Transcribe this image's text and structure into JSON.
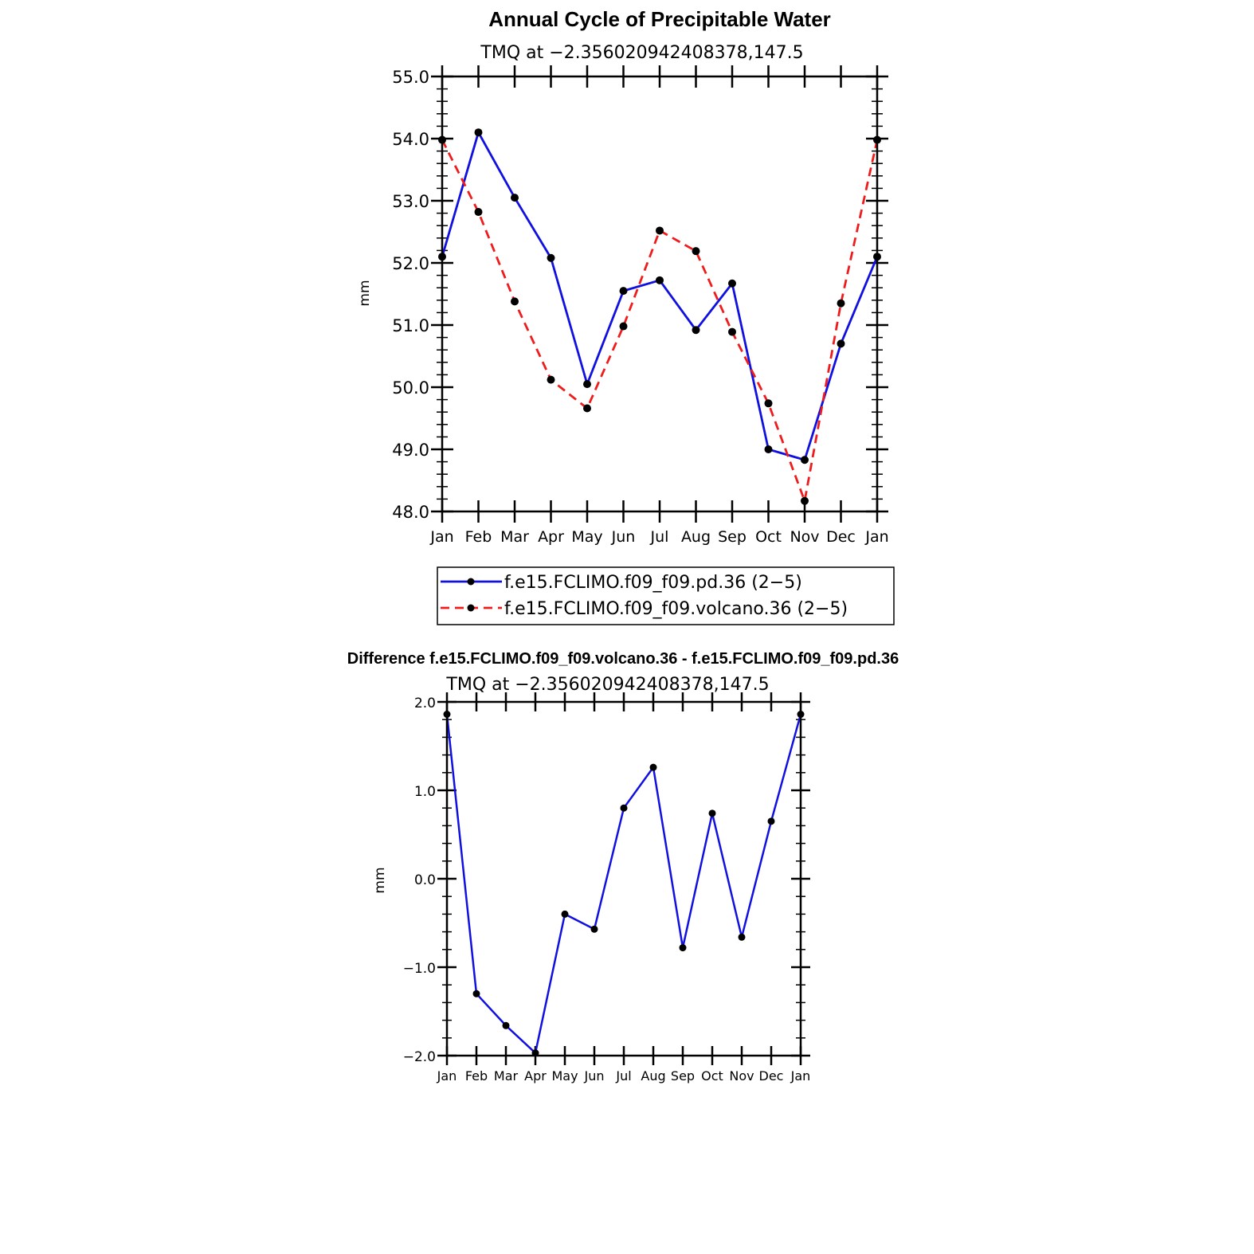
{
  "chart_data": [
    {
      "type": "line",
      "title": "Annual Cycle of Precipitable Water",
      "subtitle": "TMQ at −2.356020942408378,147.5",
      "ylabel": "mm",
      "xlabel": "",
      "ylim": [
        48.0,
        55.0
      ],
      "yticks": [
        "48.0",
        "49.0",
        "50.0",
        "51.0",
        "52.0",
        "53.0",
        "54.0",
        "55.0"
      ],
      "categories": [
        "Jan",
        "Feb",
        "Mar",
        "Apr",
        "May",
        "Jun",
        "Jul",
        "Aug",
        "Sep",
        "Oct",
        "Nov",
        "Dec",
        "Jan"
      ],
      "legend_position": "bottom",
      "series": [
        {
          "name": "f.e15.FCLIMO.f09_f09.pd.36 (2−5)",
          "color": "#1010e0",
          "style": "solid",
          "values": [
            52.1,
            54.1,
            53.05,
            52.08,
            50.05,
            51.55,
            51.72,
            50.92,
            51.67,
            49.0,
            48.83,
            50.7,
            52.1
          ]
        },
        {
          "name": "f.e15.FCLIMO.f09_f09.volcano.36 (2−5)",
          "color": "#ee1c1c",
          "style": "dashed",
          "values": [
            53.98,
            52.82,
            51.38,
            50.12,
            49.66,
            50.98,
            52.52,
            52.19,
            50.89,
            49.74,
            48.17,
            51.35,
            53.98
          ]
        }
      ]
    },
    {
      "type": "line",
      "title": "Difference f.e15.FCLIMO.f09_f09.volcano.36 - f.e15.FCLIMO.f09_f09.pd.36",
      "subtitle": "TMQ at −2.356020942408378,147.5",
      "ylabel": "mm",
      "xlabel": "",
      "ylim": [
        -2.0,
        2.0
      ],
      "yticks": [
        "−2.0",
        "−1.0",
        "0.0",
        "1.0",
        "2.0"
      ],
      "categories": [
        "Jan",
        "Feb",
        "Mar",
        "Apr",
        "May",
        "Jun",
        "Jul",
        "Aug",
        "Sep",
        "Oct",
        "Nov",
        "Dec",
        "Jan"
      ],
      "series": [
        {
          "color": "#1010e0",
          "style": "solid",
          "values": [
            1.86,
            -1.3,
            -1.66,
            -1.97,
            -0.4,
            -0.57,
            0.8,
            1.26,
            -0.78,
            0.74,
            -0.66,
            0.65,
            1.86
          ]
        }
      ]
    }
  ]
}
